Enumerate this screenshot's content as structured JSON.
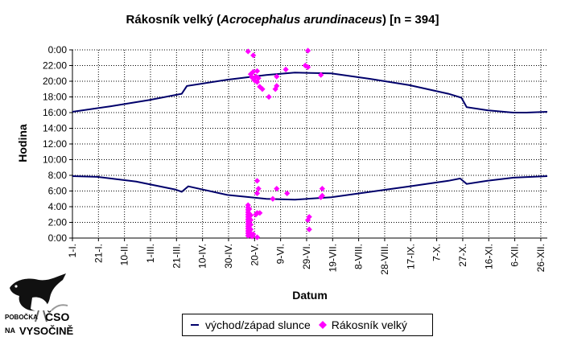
{
  "chart_data": {
    "type": "scatter",
    "title_plain": "Rákosník velký (",
    "title_italic": "Acrocephalus arundinaceus",
    "title_tail": ") [n = 394]",
    "xlabel": "Datum",
    "ylabel": "Hodina",
    "yticks": [
      "0:00",
      "2:00",
      "4:00",
      "6:00",
      "8:00",
      "10:00",
      "12:00",
      "14:00",
      "16:00",
      "18:00",
      "20:00",
      "22:00",
      "0:00"
    ],
    "ylim": [
      0,
      24
    ],
    "xlim_days": [
      1,
      366
    ],
    "xticks": [
      {
        "label": "1-I.",
        "day": 1
      },
      {
        "label": "21-I.",
        "day": 21
      },
      {
        "label": "10-II.",
        "day": 41
      },
      {
        "label": "1-III.",
        "day": 61
      },
      {
        "label": "21-III.",
        "day": 81
      },
      {
        "label": "10-IV.",
        "day": 101
      },
      {
        "label": "30-IV.",
        "day": 121
      },
      {
        "label": "20-V.",
        "day": 141
      },
      {
        "label": "9-VI.",
        "day": 161
      },
      {
        "label": "29-VI.",
        "day": 181
      },
      {
        "label": "19-VII.",
        "day": 201
      },
      {
        "label": "8-VIII.",
        "day": 221
      },
      {
        "label": "28-VIII.",
        "day": 241
      },
      {
        "label": "17-IX.",
        "day": 261
      },
      {
        "label": "7-X.",
        "day": 281
      },
      {
        "label": "27-X.",
        "day": 301
      },
      {
        "label": "16-XI.",
        "day": 321
      },
      {
        "label": "6-XII.",
        "day": 341
      },
      {
        "label": "26-XII.",
        "day": 361
      }
    ],
    "series": [
      {
        "name": "východ/západ slunce",
        "color": "#00006b",
        "sunset": [
          [
            1,
            16.1
          ],
          [
            30,
            16.8
          ],
          [
            60,
            17.6
          ],
          [
            85,
            18.4
          ],
          [
            89,
            19.4
          ],
          [
            120,
            20.2
          ],
          [
            150,
            20.8
          ],
          [
            172,
            21.1
          ],
          [
            200,
            21.0
          ],
          [
            230,
            20.3
          ],
          [
            260,
            19.5
          ],
          [
            290,
            18.4
          ],
          [
            300,
            17.9
          ],
          [
            304,
            16.7
          ],
          [
            320,
            16.3
          ],
          [
            340,
            16.0
          ],
          [
            350,
            16.0
          ],
          [
            366,
            16.1
          ]
        ],
        "sunrise": [
          [
            1,
            7.9
          ],
          [
            20,
            7.8
          ],
          [
            50,
            7.2
          ],
          [
            80,
            6.2
          ],
          [
            85,
            5.9
          ],
          [
            90,
            6.6
          ],
          [
            120,
            5.5
          ],
          [
            150,
            5.0
          ],
          [
            172,
            4.9
          ],
          [
            200,
            5.2
          ],
          [
            230,
            5.9
          ],
          [
            260,
            6.6
          ],
          [
            290,
            7.3
          ],
          [
            299,
            7.6
          ],
          [
            304,
            6.9
          ],
          [
            320,
            7.3
          ],
          [
            340,
            7.7
          ],
          [
            366,
            7.9
          ]
        ]
      },
      {
        "name": "Rákosník velký",
        "color": "#ff00ff",
        "points": [
          [
            136,
            23.8
          ],
          [
            138,
            20.9
          ],
          [
            139,
            20.5
          ],
          [
            140,
            21.2
          ],
          [
            141,
            20.1
          ],
          [
            142,
            20.6
          ],
          [
            143,
            21.3
          ],
          [
            143,
            19.9
          ],
          [
            144,
            20.4
          ],
          [
            140,
            23.3
          ],
          [
            145,
            19.3
          ],
          [
            147,
            19.0
          ],
          [
            152,
            18.0
          ],
          [
            157,
            19.0
          ],
          [
            158,
            19.4
          ],
          [
            158,
            20.6
          ],
          [
            165,
            21.5
          ],
          [
            180,
            22.0
          ],
          [
            182,
            21.8
          ],
          [
            182,
            23.9
          ],
          [
            192,
            20.8
          ],
          [
            136,
            0.3
          ],
          [
            136,
            0.6
          ],
          [
            136,
            0.9
          ],
          [
            136,
            1.2
          ],
          [
            136,
            1.5
          ],
          [
            136,
            1.8
          ],
          [
            136,
            2.1
          ],
          [
            136,
            2.4
          ],
          [
            136,
            2.7
          ],
          [
            136,
            3.0
          ],
          [
            136,
            3.3
          ],
          [
            136,
            3.6
          ],
          [
            136,
            3.9
          ],
          [
            136,
            4.2
          ],
          [
            137,
            0.4
          ],
          [
            137,
            0.8
          ],
          [
            137,
            1.3
          ],
          [
            137,
            1.9
          ],
          [
            137,
            2.5
          ],
          [
            137,
            3.1
          ],
          [
            137,
            3.7
          ],
          [
            138,
            0.5
          ],
          [
            138,
            1.1
          ],
          [
            138,
            1.7
          ],
          [
            138,
            2.3
          ],
          [
            138,
            2.9
          ],
          [
            139,
            0.2
          ],
          [
            140,
            0.5
          ],
          [
            143,
            0.1
          ],
          [
            142,
            3.0
          ],
          [
            143,
            3.2
          ],
          [
            143,
            5.7
          ],
          [
            144,
            6.3
          ],
          [
            143,
            7.3
          ],
          [
            145,
            3.2
          ],
          [
            155,
            5.0
          ],
          [
            158,
            6.3
          ],
          [
            166,
            5.7
          ],
          [
            182,
            2.3
          ],
          [
            183,
            2.7
          ],
          [
            183,
            1.1
          ],
          [
            192,
            5.2
          ],
          [
            193,
            5.4
          ],
          [
            193,
            6.3
          ]
        ]
      }
    ],
    "legend": {
      "placement": "bottom-center",
      "items": [
        "východ/západ slunce",
        "Rákosník velký"
      ]
    }
  },
  "logo": {
    "line1": "POBOČKA",
    "line2": "ČSO",
    "line3": "NA",
    "line4": "VYSOČINĚ"
  }
}
